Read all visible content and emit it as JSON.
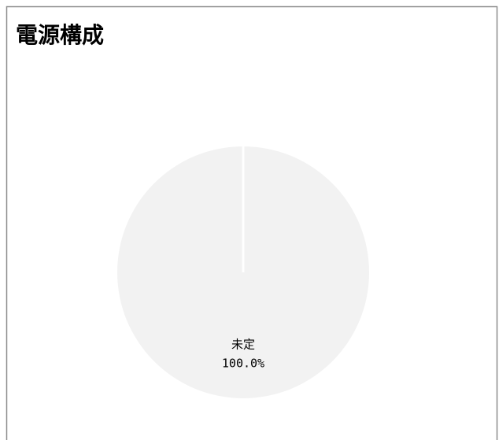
{
  "chart_data": {
    "type": "pie",
    "title": "電源構成",
    "categories": [
      "未定"
    ],
    "values": [
      100
    ],
    "value_labels": [
      "100.0%"
    ],
    "colors": [
      "#f2f2f2"
    ]
  }
}
